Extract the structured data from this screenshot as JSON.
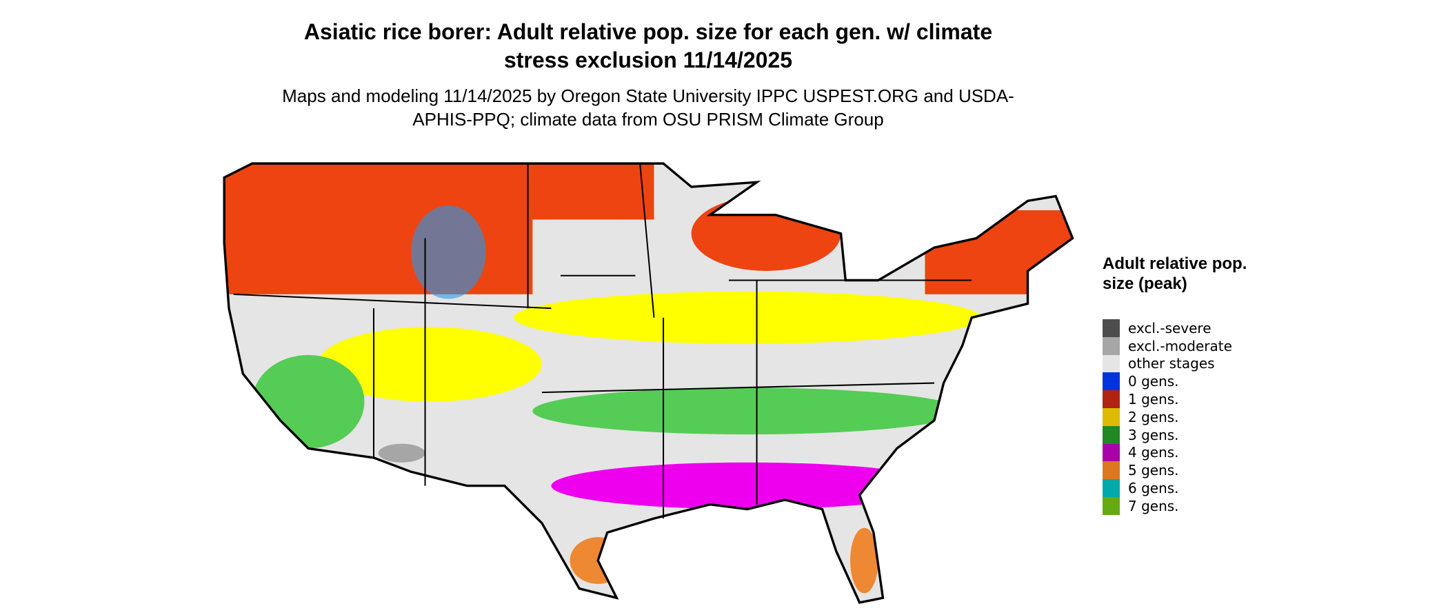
{
  "title": "Asiatic rice borer: Adult relative pop. size for each gen. w/ climate stress exclusion 11/14/2025",
  "subtitle": "Maps and modeling 11/14/2025 by Oregon State University IPPC USPEST.ORG and USDA-APHIS-PPQ; climate data from OSU PRISM Climate Group",
  "legend": {
    "title": "Adult relative pop. size (peak)",
    "items": [
      {
        "label": "excl.-severe",
        "color": "#4d4d4d"
      },
      {
        "label": "excl.-moderate",
        "color": "#a6a6a6"
      },
      {
        "label": "other stages",
        "color": "#e5e5e5"
      },
      {
        "label": "0 gens.",
        "color": "#0033dd"
      },
      {
        "label": "1 gens.",
        "color": "#b22211"
      },
      {
        "label": "2 gens.",
        "color": "#ddbb00"
      },
      {
        "label": "3 gens.",
        "color": "#228822"
      },
      {
        "label": "4 gens.",
        "color": "#aa00aa"
      },
      {
        "label": "5 gens.",
        "color": "#dd7722"
      },
      {
        "label": "6 gens.",
        "color": "#00aaaa"
      },
      {
        "label": "7 gens.",
        "color": "#66aa11"
      }
    ]
  }
}
